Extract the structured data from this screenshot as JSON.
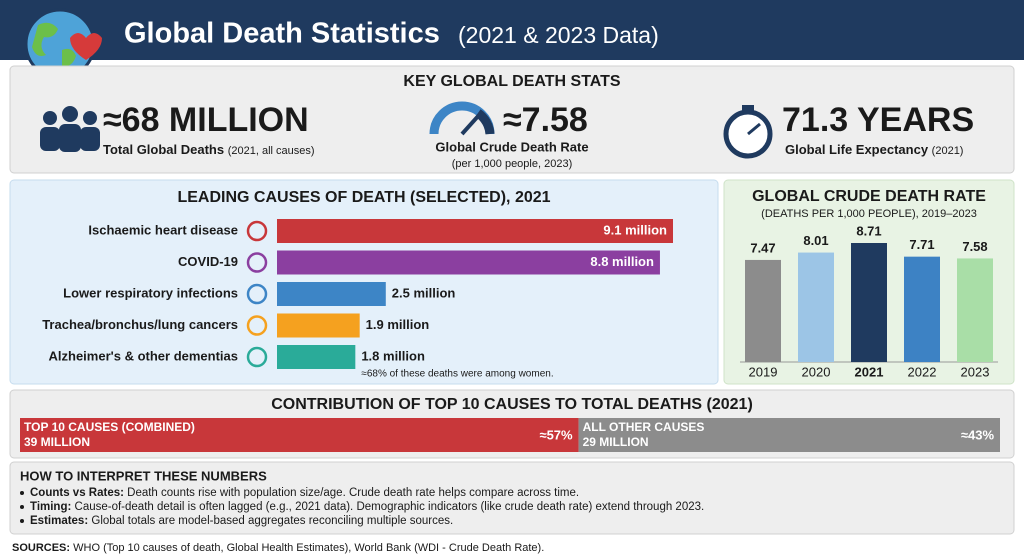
{
  "header": {
    "title": "Global Death Statistics",
    "subtitle": "(2021 & 2023 Data)"
  },
  "key_stats": {
    "title": "KEY GLOBAL DEATH STATS",
    "items": [
      {
        "value": "≈68 MILLION",
        "label": "Total Global Deaths",
        "note": "(2021, all causes)"
      },
      {
        "value": "≈7.58",
        "label": "Global Crude Death Rate",
        "note": "(per 1,000 people, 2023)"
      },
      {
        "value": "71.3 YEARS",
        "label": "Global Life Expectancy",
        "note": "(2021)"
      }
    ]
  },
  "chart_data": [
    {
      "type": "hbar",
      "title": "LEADING CAUSES OF DEATH (SELECTED), 2021",
      "categories": [
        "Ischaemic heart disease",
        "COVID-19",
        "Lower respiratory infections",
        "Trachea/bronchus/lung cancers",
        "Alzheimer's & other dementias"
      ],
      "values": [
        9.1,
        8.8,
        2.5,
        1.9,
        1.8
      ],
      "value_labels": [
        "9.1 million",
        "8.8 million",
        "2.5 million",
        "1.9 million",
        "1.8 million"
      ],
      "colors": [
        "#c8373a",
        "#8b3fa0",
        "#3d85c6",
        "#f5a11f",
        "#2aab99"
      ],
      "annotation": "≈68% of these deaths were among women."
    },
    {
      "type": "bar",
      "title": "GLOBAL CRUDE DEATH RATE",
      "subtitle": "(DEATHS PER 1,000 PEOPLE), 2019–2023",
      "categories": [
        "2019",
        "2020",
        "2021",
        "2022",
        "2023"
      ],
      "values": [
        7.47,
        8.01,
        8.71,
        7.71,
        7.58
      ],
      "colors": [
        "#8c8c8c",
        "#9cc5e6",
        "#1f3a5f",
        "#3d82c4",
        "#a9dea7"
      ]
    },
    {
      "type": "share",
      "title": "CONTRIBUTION OF TOP 10 CAUSES TO TOTAL DEATHS (2021)",
      "categories": [
        "TOP 10 CAUSES (COMBINED)",
        "ALL OTHER CAUSES"
      ],
      "sublabels": [
        "39 MILLION",
        "29 MILLION"
      ],
      "values": [
        57,
        43
      ],
      "value_labels": [
        "≈57%",
        "≈43%"
      ],
      "colors": [
        "#c8373a",
        "#8c8c8c"
      ]
    }
  ],
  "notes": {
    "title": "HOW TO INTERPRET THESE NUMBERS",
    "items": [
      {
        "term": "Counts vs Rates:",
        "text": "Death counts rise with population size/age. Crude death rate helps compare across time."
      },
      {
        "term": "Timing:",
        "text": "Cause-of-death detail is often lagged (e.g., 2021 data). Demographic indicators (like crude death rate) extend through 2023."
      },
      {
        "term": "Estimates:",
        "text": "Global totals are model-based aggregates reconciling multiple sources."
      }
    ]
  },
  "sources": {
    "label": "SOURCES:",
    "text": "WHO (Top 10 causes of death, Global Health Estimates), World Bank (WDI - Crude Death Rate)."
  }
}
